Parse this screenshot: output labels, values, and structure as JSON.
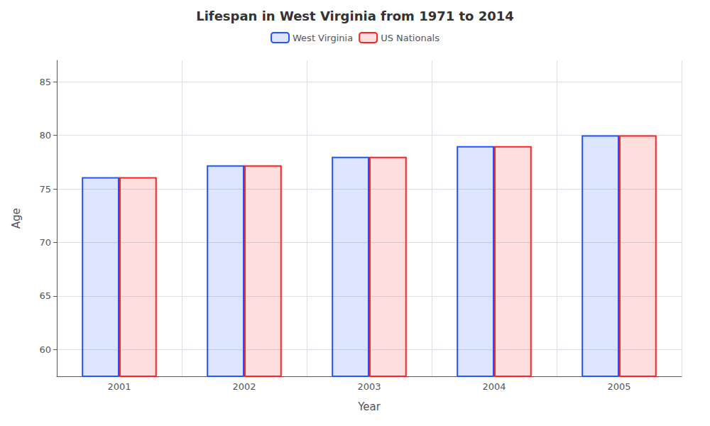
{
  "chart_data": {
    "type": "bar",
    "title": "Lifespan in West Virginia from 1971 to 2014",
    "xlabel": "Year",
    "ylabel": "Age",
    "categories": [
      "2001",
      "2002",
      "2003",
      "2004",
      "2005"
    ],
    "series": [
      {
        "name": "West Virginia",
        "color": "#2255ff",
        "values": [
          76.1,
          77.2,
          78.0,
          79.0,
          80.0
        ]
      },
      {
        "name": "US Nationals",
        "color": "#ff2222",
        "values": [
          76.1,
          77.2,
          78.0,
          79.0,
          80.0
        ]
      }
    ],
    "ylim": [
      57.5,
      87
    ],
    "yticks": [
      60,
      65,
      70,
      75,
      80,
      85
    ],
    "grid": true,
    "legend": "top"
  }
}
